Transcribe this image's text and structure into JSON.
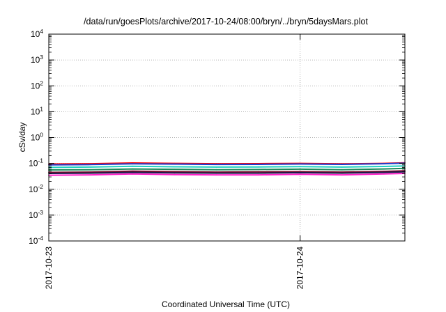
{
  "chart_data": {
    "type": "line",
    "title": "/data/run/goesPlots/archive/2017-10-24/08:00/bryn/../bryn/5daysMars.plot",
    "xlabel": "Coordinated Universal Time (UTC)",
    "ylabel": "cSv/day",
    "yscale": "log",
    "ylim": [
      0.0001,
      10000
    ],
    "y_ticks": [
      {
        "base": "10",
        "exp": "4"
      },
      {
        "base": "10",
        "exp": "3"
      },
      {
        "base": "10",
        "exp": "2"
      },
      {
        "base": "10",
        "exp": "1"
      },
      {
        "base": "10",
        "exp": "0"
      },
      {
        "base": "10",
        "exp": "-1"
      },
      {
        "base": "10",
        "exp": "-2"
      },
      {
        "base": "10",
        "exp": "-3"
      },
      {
        "base": "10",
        "exp": "-4"
      }
    ],
    "xlim": [
      "2017-10-23 00:00",
      "2017-10-24 10:00"
    ],
    "x_ticks": [
      "2017-10-23",
      "2017-10-24"
    ],
    "grid": "dotted vertical line at 2017-10-24",
    "series": [
      {
        "color": "#ff0000",
        "x": [
          "2017-10-23 00:00",
          "2017-10-23 04:00",
          "2017-10-23 08:00",
          "2017-10-23 12:00",
          "2017-10-23 16:00",
          "2017-10-23 20:00",
          "2017-10-24 00:00",
          "2017-10-24 04:00",
          "2017-10-24 08:00",
          "2017-10-24 10:00"
        ],
        "y": [
          0.095,
          0.097,
          0.104,
          0.1,
          0.097,
          0.098,
          0.1,
          0.096,
          0.1,
          0.105
        ]
      },
      {
        "color": "#1f3fd0",
        "x": [
          "2017-10-23 00:00",
          "2017-10-23 04:00",
          "2017-10-23 08:00",
          "2017-10-23 12:00",
          "2017-10-23 16:00",
          "2017-10-23 20:00",
          "2017-10-24 00:00",
          "2017-10-24 04:00",
          "2017-10-24 08:00",
          "2017-10-24 10:00"
        ],
        "y": [
          0.088,
          0.09,
          0.096,
          0.094,
          0.091,
          0.092,
          0.095,
          0.092,
          0.097,
          0.102
        ]
      },
      {
        "color": "#1fd0c0",
        "x": [
          "2017-10-23 00:00",
          "2017-10-23 04:00",
          "2017-10-23 08:00",
          "2017-10-23 12:00",
          "2017-10-23 16:00",
          "2017-10-23 20:00",
          "2017-10-24 00:00",
          "2017-10-24 04:00",
          "2017-10-24 08:00",
          "2017-10-24 10:00"
        ],
        "y": [
          0.07,
          0.072,
          0.077,
          0.074,
          0.072,
          0.073,
          0.075,
          0.072,
          0.076,
          0.08
        ]
      },
      {
        "color": "#1a8a5a",
        "x": [
          "2017-10-23 00:00",
          "2017-10-23 04:00",
          "2017-10-23 08:00",
          "2017-10-23 12:00",
          "2017-10-23 16:00",
          "2017-10-23 20:00",
          "2017-10-24 00:00",
          "2017-10-24 04:00",
          "2017-10-24 08:00",
          "2017-10-24 10:00"
        ],
        "y": [
          0.056,
          0.057,
          0.061,
          0.059,
          0.057,
          0.058,
          0.06,
          0.057,
          0.061,
          0.064
        ]
      },
      {
        "color": "#7a0a2a",
        "x": [
          "2017-10-23 00:00",
          "2017-10-23 04:00",
          "2017-10-23 08:00",
          "2017-10-23 12:00",
          "2017-10-23 16:00",
          "2017-10-23 20:00",
          "2017-10-24 00:00",
          "2017-10-24 04:00",
          "2017-10-24 08:00",
          "2017-10-24 10:00"
        ],
        "y": [
          0.045,
          0.046,
          0.05,
          0.048,
          0.046,
          0.047,
          0.048,
          0.046,
          0.049,
          0.052
        ]
      },
      {
        "color": "#1a1a4a",
        "x": [
          "2017-10-23 00:00",
          "2017-10-23 04:00",
          "2017-10-23 08:00",
          "2017-10-23 12:00",
          "2017-10-23 16:00",
          "2017-10-23 20:00",
          "2017-10-24 00:00",
          "2017-10-24 04:00",
          "2017-10-24 08:00",
          "2017-10-24 10:00"
        ],
        "y": [
          0.041,
          0.042,
          0.045,
          0.043,
          0.042,
          0.042,
          0.044,
          0.042,
          0.045,
          0.047
        ]
      },
      {
        "color": "#ff1fc8",
        "x": [
          "2017-10-23 00:00",
          "2017-10-23 04:00",
          "2017-10-23 08:00",
          "2017-10-23 12:00",
          "2017-10-23 16:00",
          "2017-10-23 20:00",
          "2017-10-24 00:00",
          "2017-10-24 04:00",
          "2017-10-24 08:00",
          "2017-10-24 10:00"
        ],
        "y": [
          0.035,
          0.036,
          0.039,
          0.037,
          0.036,
          0.036,
          0.038,
          0.036,
          0.039,
          0.041
        ]
      }
    ]
  }
}
